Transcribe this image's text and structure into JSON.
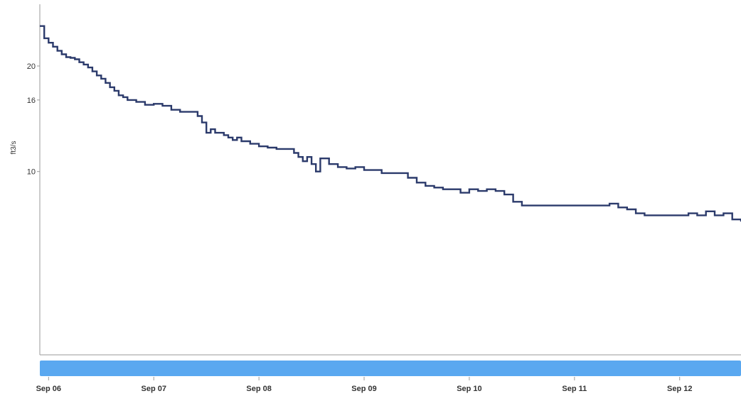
{
  "chart_data": {
    "type": "line",
    "title": "",
    "xlabel": "",
    "ylabel": "ft3/s",
    "y_scale": "log",
    "ylim": [
      3,
      30
    ],
    "xlim": [
      "Sep 05 22:00",
      "Sep 12 14:00"
    ],
    "grid": false,
    "legend": "none",
    "y_ticks": [
      {
        "value": 10,
        "label": "10"
      },
      {
        "value": 16,
        "label": "16"
      },
      {
        "value": 20,
        "label": "20"
      }
    ],
    "x_ticks": [
      {
        "value": "Sep 06 00:00",
        "label": "Sep 06"
      },
      {
        "value": "Sep 07 00:00",
        "label": "Sep 07"
      },
      {
        "value": "Sep 08 00:00",
        "label": "Sep 08"
      },
      {
        "value": "Sep 09 00:00",
        "label": "Sep 09"
      },
      {
        "value": "Sep 10 00:00",
        "label": "Sep 10"
      },
      {
        "value": "Sep 11 00:00",
        "label": "Sep 11"
      },
      {
        "value": "Sep 12 00:00",
        "label": "Sep 12"
      }
    ],
    "series": [
      {
        "color": "#2b3a6b",
        "points": [
          [
            "Sep 05 22:00",
            26.0
          ],
          [
            "Sep 05 23:00",
            24.0
          ],
          [
            "Sep 06 00:00",
            23.3
          ],
          [
            "Sep 06 01:00",
            22.7
          ],
          [
            "Sep 06 02:00",
            22.1
          ],
          [
            "Sep 06 03:00",
            21.6
          ],
          [
            "Sep 06 04:00",
            21.2
          ],
          [
            "Sep 06 05:00",
            21.1
          ],
          [
            "Sep 06 06:00",
            20.9
          ],
          [
            "Sep 06 07:00",
            20.5
          ],
          [
            "Sep 06 08:00",
            20.2
          ],
          [
            "Sep 06 09:00",
            19.8
          ],
          [
            "Sep 06 10:00",
            19.3
          ],
          [
            "Sep 06 11:00",
            18.8
          ],
          [
            "Sep 06 12:00",
            18.4
          ],
          [
            "Sep 06 13:00",
            17.9
          ],
          [
            "Sep 06 14:00",
            17.4
          ],
          [
            "Sep 06 15:00",
            17.0
          ],
          [
            "Sep 06 16:00",
            16.5
          ],
          [
            "Sep 06 17:00",
            16.3
          ],
          [
            "Sep 06 18:00",
            16.0
          ],
          [
            "Sep 06 20:00",
            15.8
          ],
          [
            "Sep 06 22:00",
            15.5
          ],
          [
            "Sep 07 00:00",
            15.6
          ],
          [
            "Sep 07 02:00",
            15.4
          ],
          [
            "Sep 07 04:00",
            15.0
          ],
          [
            "Sep 07 06:00",
            14.8
          ],
          [
            "Sep 07 08:00",
            14.8
          ],
          [
            "Sep 07 10:00",
            14.4
          ],
          [
            "Sep 07 11:00",
            13.8
          ],
          [
            "Sep 07 12:00",
            12.9
          ],
          [
            "Sep 07 13:00",
            13.2
          ],
          [
            "Sep 07 14:00",
            12.9
          ],
          [
            "Sep 07 16:00",
            12.7
          ],
          [
            "Sep 07 17:00",
            12.5
          ],
          [
            "Sep 07 18:00",
            12.3
          ],
          [
            "Sep 07 19:00",
            12.5
          ],
          [
            "Sep 07 20:00",
            12.2
          ],
          [
            "Sep 07 22:00",
            12.0
          ],
          [
            "Sep 08 00:00",
            11.8
          ],
          [
            "Sep 08 02:00",
            11.7
          ],
          [
            "Sep 08 04:00",
            11.6
          ],
          [
            "Sep 08 06:00",
            11.6
          ],
          [
            "Sep 08 08:00",
            11.3
          ],
          [
            "Sep 08 09:00",
            11.0
          ],
          [
            "Sep 08 10:00",
            10.7
          ],
          [
            "Sep 08 11:00",
            11.0
          ],
          [
            "Sep 08 12:00",
            10.5
          ],
          [
            "Sep 08 13:00",
            10.0
          ],
          [
            "Sep 08 14:00",
            10.9
          ],
          [
            "Sep 08 16:00",
            10.5
          ],
          [
            "Sep 08 18:00",
            10.3
          ],
          [
            "Sep 08 20:00",
            10.2
          ],
          [
            "Sep 08 22:00",
            10.3
          ],
          [
            "Sep 09 00:00",
            10.1
          ],
          [
            "Sep 09 04:00",
            9.9
          ],
          [
            "Sep 09 08:00",
            9.9
          ],
          [
            "Sep 09 10:00",
            9.6
          ],
          [
            "Sep 09 12:00",
            9.3
          ],
          [
            "Sep 09 14:00",
            9.1
          ],
          [
            "Sep 09 16:00",
            9.0
          ],
          [
            "Sep 09 18:00",
            8.9
          ],
          [
            "Sep 09 20:00",
            8.9
          ],
          [
            "Sep 09 22:00",
            8.7
          ],
          [
            "Sep 10 00:00",
            8.9
          ],
          [
            "Sep 10 02:00",
            8.8
          ],
          [
            "Sep 10 04:00",
            8.9
          ],
          [
            "Sep 10 06:00",
            8.8
          ],
          [
            "Sep 10 08:00",
            8.6
          ],
          [
            "Sep 10 10:00",
            8.2
          ],
          [
            "Sep 10 12:00",
            8.0
          ],
          [
            "Sep 10 14:00",
            8.0
          ],
          [
            "Sep 10 18:00",
            8.0
          ],
          [
            "Sep 11 00:00",
            8.0
          ],
          [
            "Sep 11 06:00",
            8.0
          ],
          [
            "Sep 11 08:00",
            8.1
          ],
          [
            "Sep 11 10:00",
            7.9
          ],
          [
            "Sep 11 12:00",
            7.8
          ],
          [
            "Sep 11 14:00",
            7.6
          ],
          [
            "Sep 11 16:00",
            7.5
          ],
          [
            "Sep 11 18:00",
            7.5
          ],
          [
            "Sep 11 20:00",
            7.5
          ],
          [
            "Sep 12 00:00",
            7.5
          ],
          [
            "Sep 12 02:00",
            7.6
          ],
          [
            "Sep 12 04:00",
            7.5
          ],
          [
            "Sep 12 06:00",
            7.7
          ],
          [
            "Sep 12 08:00",
            7.5
          ],
          [
            "Sep 12 10:00",
            7.6
          ],
          [
            "Sep 12 12:00",
            7.3
          ],
          [
            "Sep 12 14:00",
            7.2
          ]
        ]
      }
    ]
  },
  "scrollbar": {
    "color": "#5aa8f0"
  }
}
